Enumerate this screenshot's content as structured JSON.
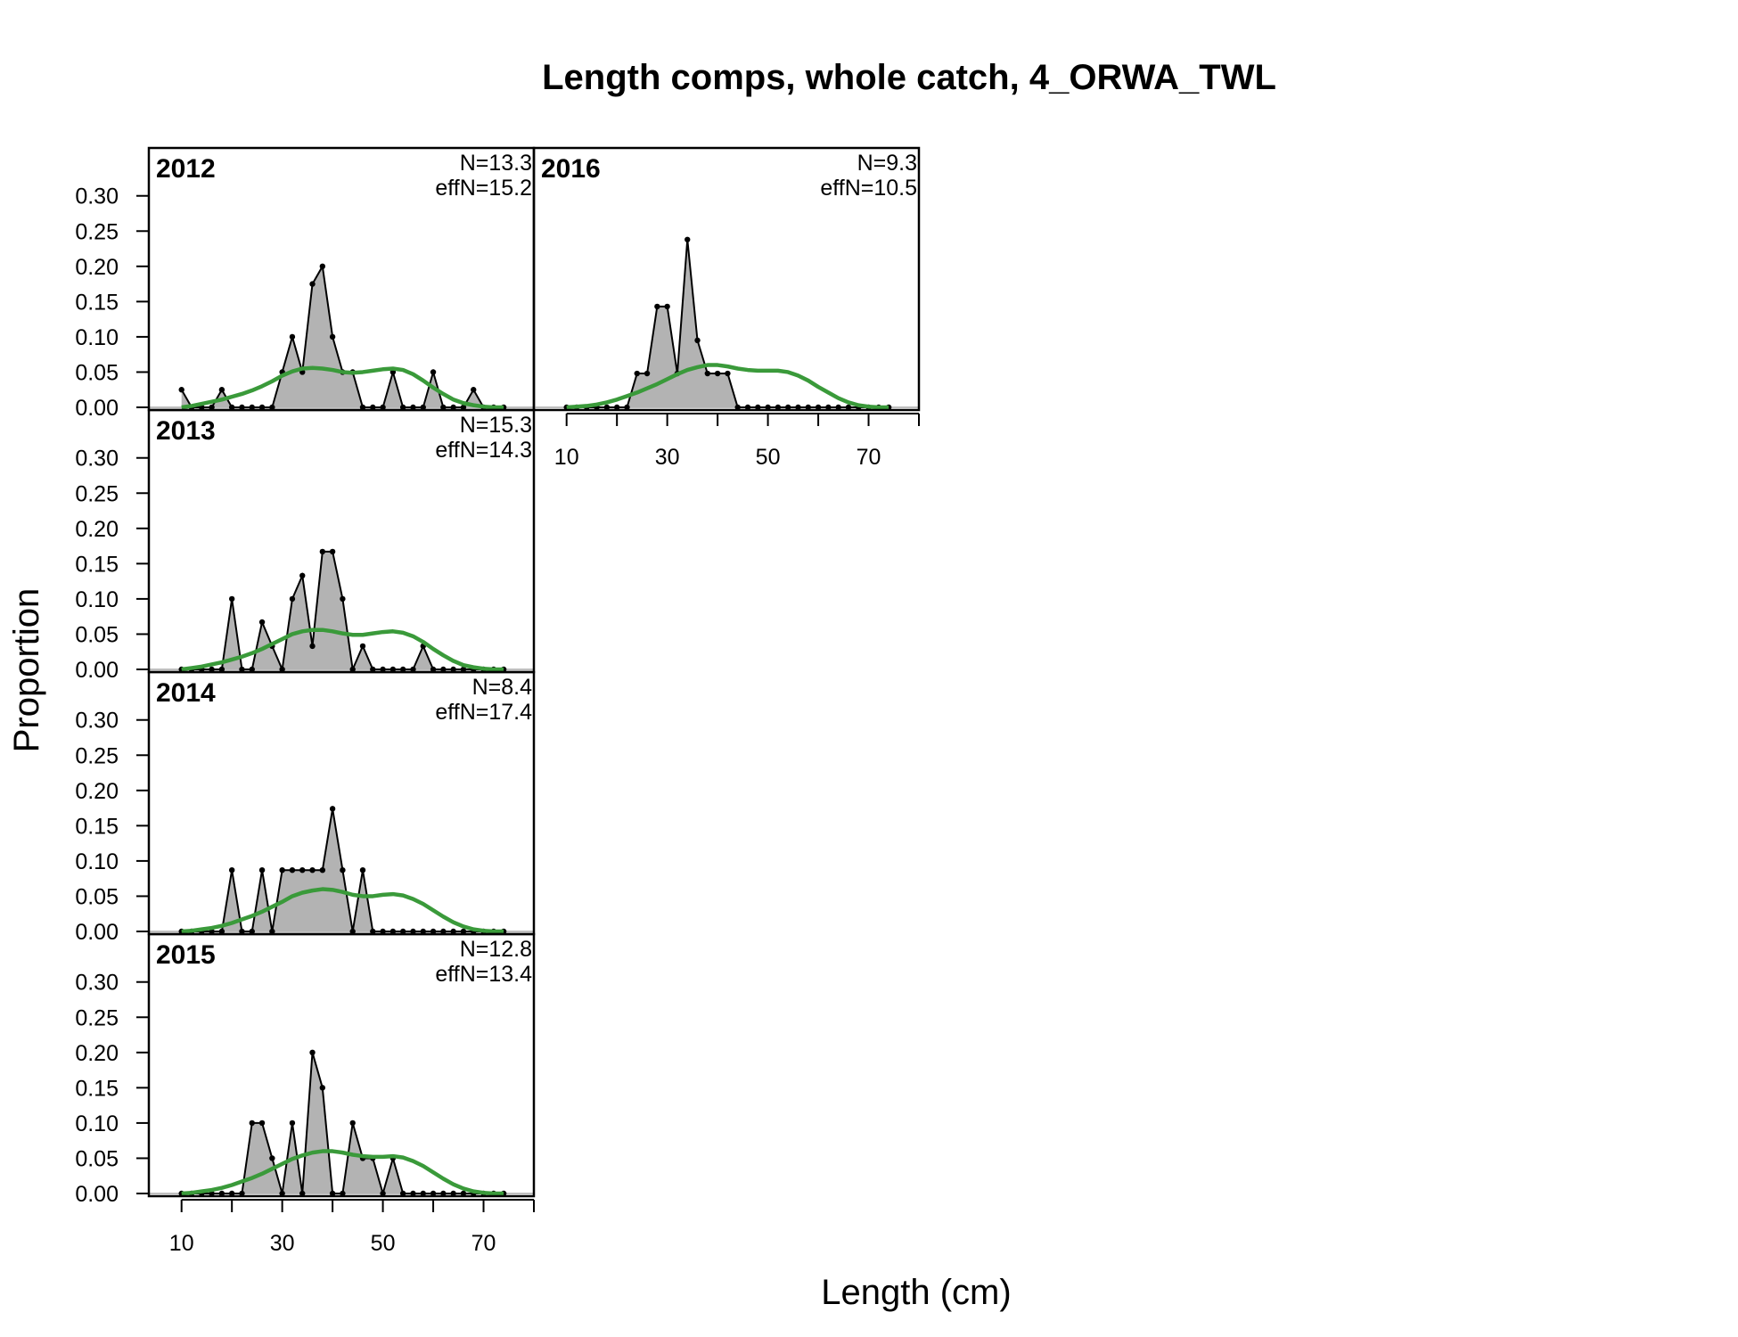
{
  "chart_data": {
    "type": "area",
    "title": "Length comps, whole catch, 4_ORWA_TWL",
    "xlabel": "Length (cm)",
    "ylabel": "Proportion",
    "xlim": [
      3.5,
      80
    ],
    "ylim": [
      0,
      0.33
    ],
    "x_ticks": [
      10,
      20,
      30,
      40,
      50,
      60,
      70,
      80
    ],
    "x_tick_labels": [
      "10",
      "30",
      "50",
      "70"
    ],
    "y_ticks": [
      0,
      0.05,
      0.1,
      0.15,
      0.2,
      0.25,
      0.3
    ],
    "y_tick_labels": [
      "0.00",
      "0.05",
      "0.10",
      "0.15",
      "0.20",
      "0.25",
      "0.30"
    ],
    "series_styles": {
      "observed_fill": "#b3b3b3",
      "observed_line": "#000000",
      "expected_line": "#3a9a3a",
      "zero_line": "#bfbfbf"
    },
    "x": [
      10,
      12,
      14,
      16,
      18,
      20,
      22,
      24,
      26,
      28,
      30,
      32,
      34,
      36,
      38,
      40,
      42,
      44,
      46,
      48,
      50,
      52,
      54,
      56,
      58,
      60,
      62,
      64,
      66,
      68,
      70,
      72,
      74
    ],
    "panels": [
      {
        "year": "2012",
        "n_label": "N=13.3",
        "effn_label": "effN=15.2",
        "observed": [
          0.025,
          0,
          0,
          0,
          0.025,
          0,
          0,
          0,
          0,
          0,
          0.05,
          0.1,
          0.05,
          0.175,
          0.2,
          0.1,
          0.05,
          0.05,
          0,
          0,
          0,
          0.05,
          0,
          0,
          0,
          0.05,
          0,
          0,
          0,
          0.025,
          0,
          0,
          0
        ],
        "expected": [
          0.0,
          0.002,
          0.005,
          0.008,
          0.011,
          0.015,
          0.019,
          0.024,
          0.03,
          0.037,
          0.045,
          0.051,
          0.055,
          0.056,
          0.055,
          0.053,
          0.05,
          0.049,
          0.05,
          0.052,
          0.054,
          0.055,
          0.053,
          0.047,
          0.038,
          0.028,
          0.019,
          0.011,
          0.006,
          0.003,
          0.001,
          0.0,
          0.0
        ]
      },
      {
        "year": "2013",
        "n_label": "N=15.3",
        "effn_label": "effN=14.3",
        "observed": [
          0,
          0,
          0,
          0,
          0,
          0.1,
          0,
          0,
          0.067,
          0.033,
          0,
          0.1,
          0.133,
          0.033,
          0.167,
          0.167,
          0.1,
          0,
          0.033,
          0,
          0,
          0,
          0,
          0,
          0.033,
          0,
          0,
          0,
          0,
          0,
          0,
          0,
          0
        ],
        "expected": [
          0.0,
          0.002,
          0.004,
          0.007,
          0.01,
          0.014,
          0.018,
          0.023,
          0.029,
          0.036,
          0.043,
          0.05,
          0.054,
          0.056,
          0.056,
          0.054,
          0.051,
          0.049,
          0.049,
          0.051,
          0.053,
          0.054,
          0.052,
          0.047,
          0.039,
          0.029,
          0.02,
          0.012,
          0.006,
          0.003,
          0.001,
          0.0,
          0.0
        ]
      },
      {
        "year": "2014",
        "n_label": "N=8.4",
        "effn_label": "effN=17.4",
        "observed": [
          0,
          0,
          0,
          0,
          0,
          0.087,
          0,
          0,
          0.087,
          0,
          0.087,
          0.087,
          0.087,
          0.087,
          0.087,
          0.174,
          0.087,
          0,
          0.087,
          0,
          0,
          0,
          0,
          0,
          0,
          0,
          0,
          0,
          0,
          0,
          0,
          0,
          0
        ],
        "expected": [
          0.0,
          0.001,
          0.003,
          0.005,
          0.008,
          0.012,
          0.017,
          0.022,
          0.028,
          0.035,
          0.042,
          0.05,
          0.055,
          0.058,
          0.06,
          0.059,
          0.056,
          0.052,
          0.05,
          0.05,
          0.052,
          0.053,
          0.051,
          0.046,
          0.039,
          0.03,
          0.021,
          0.013,
          0.007,
          0.003,
          0.001,
          0.0,
          0.0
        ]
      },
      {
        "year": "2015",
        "n_label": "N=12.8",
        "effn_label": "effN=13.4",
        "observed": [
          0,
          0,
          0,
          0,
          0,
          0,
          0,
          0.1,
          0.1,
          0.05,
          0,
          0.1,
          0,
          0.2,
          0.15,
          0,
          0,
          0.1,
          0.05,
          0.05,
          0,
          0.05,
          0,
          0,
          0,
          0,
          0,
          0,
          0,
          0,
          0,
          0,
          0
        ],
        "expected": [
          0.0,
          0.001,
          0.003,
          0.005,
          0.008,
          0.012,
          0.017,
          0.022,
          0.028,
          0.035,
          0.042,
          0.049,
          0.054,
          0.058,
          0.06,
          0.06,
          0.058,
          0.055,
          0.053,
          0.052,
          0.052,
          0.053,
          0.051,
          0.046,
          0.039,
          0.03,
          0.021,
          0.013,
          0.007,
          0.003,
          0.001,
          0.0,
          0.0
        ]
      },
      {
        "year": "2016",
        "n_label": "N=9.3",
        "effn_label": "effN=10.5",
        "observed": [
          0,
          0,
          0,
          0,
          0,
          0,
          0,
          0.048,
          0.048,
          0.143,
          0.143,
          0.048,
          0.238,
          0.095,
          0.048,
          0.048,
          0.048,
          0,
          0,
          0,
          0,
          0,
          0,
          0,
          0,
          0,
          0,
          0,
          0,
          0,
          0,
          0,
          0
        ],
        "expected": [
          0.0,
          0.001,
          0.002,
          0.004,
          0.007,
          0.011,
          0.016,
          0.021,
          0.027,
          0.033,
          0.04,
          0.047,
          0.053,
          0.057,
          0.06,
          0.06,
          0.058,
          0.055,
          0.053,
          0.052,
          0.052,
          0.052,
          0.05,
          0.045,
          0.038,
          0.029,
          0.021,
          0.013,
          0.007,
          0.003,
          0.001,
          0.0,
          0.0
        ]
      }
    ]
  }
}
